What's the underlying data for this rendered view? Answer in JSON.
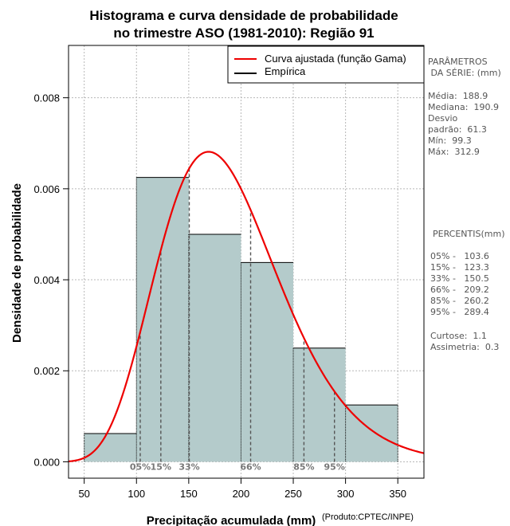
{
  "chart_data": {
    "type": "bar",
    "title_lines": [
      "Histograma e curva densidade de probabilidade",
      "no trimestre ASO (1981-2010): Região 91"
    ],
    "xlabel": "Precipitação acumulada (mm)",
    "ylabel": "Densidade de probabilidade",
    "credit": "(Produto:CPTEC/INPE)",
    "xlim": [
      35,
      375
    ],
    "ylim": [
      -0.00036,
      0.00915
    ],
    "x_ticks": [
      50,
      100,
      150,
      200,
      250,
      300,
      350
    ],
    "y_ticks": [
      0.0,
      0.002,
      0.004,
      0.006,
      0.008
    ],
    "y_tick_labels": [
      "0.000",
      "0.002",
      "0.004",
      "0.006",
      "0.008"
    ],
    "grid": true,
    "histogram": {
      "bin_edges": [
        50,
        100,
        150,
        200,
        250,
        300,
        350
      ],
      "densities": [
        0.00062,
        0.00625,
        0.005,
        0.00438,
        0.0025,
        0.00125
      ],
      "fill_color": "#b4cbcb"
    },
    "fitted_curve": {
      "name": "Curva ajustada (função Gama)",
      "distribution": "gamma",
      "mean": 188.9,
      "std_dev": 61.3,
      "color": "#ee0000"
    },
    "legend": {
      "position": "top-right",
      "entries": [
        {
          "label": "Curva ajustada (função Gama)",
          "color": "#ee0000"
        },
        {
          "label": "Empírica",
          "color": "#000000"
        }
      ]
    },
    "percentile_markers": [
      {
        "label": "05%",
        "value": 103.6
      },
      {
        "label": "15%",
        "value": 123.3
      },
      {
        "label": "33%",
        "value": 150.5
      },
      {
        "label": "66%",
        "value": 209.2
      },
      {
        "label": "85%",
        "value": 260.2
      },
      {
        "label": "95%",
        "value": 289.4
      }
    ]
  },
  "side_panel": {
    "params_lines": [
      "PARÂMETROS",
      " DA SÉRIE: (mm)"
    ],
    "stats_lines": [
      "Média:  188.9",
      "Mediana:  190.9",
      "Desvio",
      "padrão:  61.3",
      "Mín:  99.3",
      "Máx:  312.9"
    ],
    "percentis_title": "PERCENTIS(mm)",
    "percentis_lines": [
      "05% -   103.6",
      "15% -   123.3",
      "33% -   150.5",
      "66% -   209.2",
      "85% -   260.2",
      "95% -   289.4"
    ],
    "shape_lines": [
      "Curtose:  1.1",
      "Assimetria:  0.3"
    ]
  }
}
